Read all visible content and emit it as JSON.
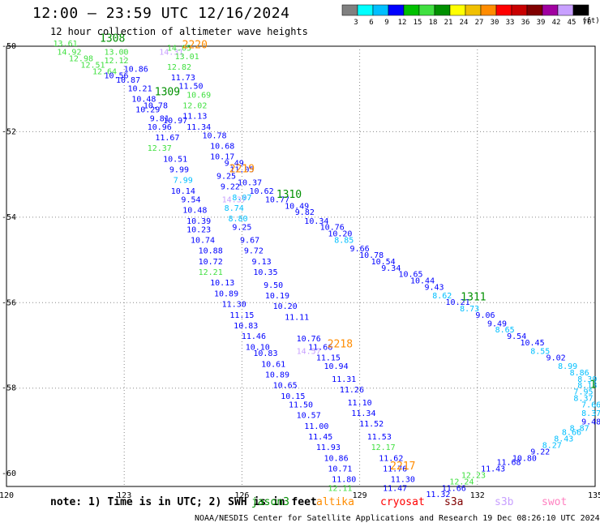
{
  "header": {
    "title": "12:00 — 23:59 UTC 12/16/2024",
    "subtitle": "12 hour collection of altimeter wave heights"
  },
  "colorbar": {
    "unit": "(ft)",
    "labels": [
      "3",
      "6",
      "9",
      "12",
      "15",
      "18",
      "21",
      "24",
      "27",
      "30",
      "33",
      "36",
      "39",
      "42",
      "45",
      "70"
    ],
    "colors": [
      "#808080",
      "#00ffff",
      "#00bfff",
      "#0000ff",
      "#00c000",
      "#40e040",
      "#009000",
      "#ffff00",
      "#f0c000",
      "#ff8c00",
      "#ff0000",
      "#c80000",
      "#800000",
      "#a000a0",
      "#c8a0ff",
      "#000000"
    ]
  },
  "axes": {
    "lon_ticks": [
      "120",
      "123",
      "126",
      "129",
      "132",
      "135"
    ],
    "lat_ticks": [
      "-50",
      "-52",
      "-54",
      "-56",
      "-58",
      "-60"
    ]
  },
  "satellites": [
    {
      "name": "jason3",
      "label": "jason3",
      "color": "#009000"
    },
    {
      "name": "altika",
      "label": "altika",
      "color": "#ff8c00"
    },
    {
      "name": "cryosat",
      "label": "cryosat",
      "color": "#ff0000"
    },
    {
      "name": "s3a",
      "label": "s3a",
      "color": "#800000"
    },
    {
      "name": "s3b",
      "label": "s3b",
      "color": "#c8a0ff"
    },
    {
      "name": "swot",
      "label": "swot",
      "color": "#ff80c0"
    }
  ],
  "time_labels": [
    {
      "text": "1308",
      "color": "#009000",
      "lon": 122.7,
      "lat": -49.9
    },
    {
      "text": "2220",
      "color": "#ff8c00",
      "lon": 124.8,
      "lat": -50.05
    },
    {
      "text": "1309",
      "color": "#009000",
      "lon": 124.1,
      "lat": -51.15
    },
    {
      "text": "2219",
      "color": "#ff8c00",
      "lon": 126.0,
      "lat": -52.95
    },
    {
      "text": "1310",
      "color": "#009000",
      "lon": 127.2,
      "lat": -53.55
    },
    {
      "text": "1311",
      "color": "#009000",
      "lon": 131.9,
      "lat": -55.95
    },
    {
      "text": "2218",
      "color": "#ff8c00",
      "lon": 128.5,
      "lat": -57.05
    },
    {
      "text": "2217",
      "color": "#ff8c00",
      "lon": 130.1,
      "lat": -59.9
    },
    {
      "text": "1",
      "color": "#009000",
      "lon": 134.95,
      "lat": -58.0
    }
  ],
  "wave_labels": [
    {
      "v": "13.61",
      "c": "#40e040",
      "lon": 121.5,
      "lat": -50.0
    },
    {
      "v": "14.92",
      "c": "#40e040",
      "lon": 121.6,
      "lat": -50.2
    },
    {
      "v": "13.00",
      "c": "#40e040",
      "lon": 122.8,
      "lat": -50.2
    },
    {
      "v": "12.98",
      "c": "#40e040",
      "lon": 121.9,
      "lat": -50.35
    },
    {
      "v": "12.12",
      "c": "#40e040",
      "lon": 122.8,
      "lat": -50.4
    },
    {
      "v": "12.51",
      "c": "#40e040",
      "lon": 122.2,
      "lat": -50.5
    },
    {
      "v": "12.64",
      "c": "#40e040",
      "lon": 122.5,
      "lat": -50.65
    },
    {
      "v": "14.31",
      "c": "#c8a0ff",
      "lon": 124.2,
      "lat": -50.2
    },
    {
      "v": "14.05",
      "c": "#40e040",
      "lon": 124.4,
      "lat": -50.1
    },
    {
      "v": "13.01",
      "c": "#40e040",
      "lon": 124.6,
      "lat": -50.3
    },
    {
      "v": "12.82",
      "c": "#40e040",
      "lon": 124.4,
      "lat": -50.55
    },
    {
      "v": "10.86",
      "c": "#0000ff",
      "lon": 123.3,
      "lat": -50.6
    },
    {
      "v": "10.56",
      "c": "#0000ff",
      "lon": 122.8,
      "lat": -50.75
    },
    {
      "v": "10.87",
      "c": "#0000ff",
      "lon": 123.1,
      "lat": -50.85
    },
    {
      "v": "11.73",
      "c": "#0000ff",
      "lon": 124.5,
      "lat": -50.8
    },
    {
      "v": "11.50",
      "c": "#0000ff",
      "lon": 124.7,
      "lat": -51.0
    },
    {
      "v": "10.21",
      "c": "#0000ff",
      "lon": 123.4,
      "lat": -51.05
    },
    {
      "v": "10.69",
      "c": "#40e040",
      "lon": 124.9,
      "lat": -51.2
    },
    {
      "v": "10.48",
      "c": "#0000ff",
      "lon": 123.5,
      "lat": -51.3
    },
    {
      "v": "10.78",
      "c": "#0000ff",
      "lon": 123.8,
      "lat": -51.45
    },
    {
      "v": "12.02",
      "c": "#40e040",
      "lon": 124.8,
      "lat": -51.45
    },
    {
      "v": "10.29",
      "c": "#0000ff",
      "lon": 123.6,
      "lat": -51.55
    },
    {
      "v": "11.13",
      "c": "#0000ff",
      "lon": 124.8,
      "lat": -51.7
    },
    {
      "v": "9.81",
      "c": "#0000ff",
      "lon": 123.9,
      "lat": -51.75
    },
    {
      "v": "10.97",
      "c": "#0000ff",
      "lon": 124.3,
      "lat": -51.8
    },
    {
      "v": "11.34",
      "c": "#0000ff",
      "lon": 124.9,
      "lat": -51.95
    },
    {
      "v": "10.96",
      "c": "#0000ff",
      "lon": 123.9,
      "lat": -51.95
    },
    {
      "v": "11.67",
      "c": "#0000ff",
      "lon": 124.1,
      "lat": -52.2
    },
    {
      "v": "10.78",
      "c": "#0000ff",
      "lon": 125.3,
      "lat": -52.15
    },
    {
      "v": "12.37",
      "c": "#40e040",
      "lon": 123.9,
      "lat": -52.45
    },
    {
      "v": "10.68",
      "c": "#0000ff",
      "lon": 125.5,
      "lat": -52.4
    },
    {
      "v": "10.51",
      "c": "#0000ff",
      "lon": 124.3,
      "lat": -52.7
    },
    {
      "v": "10.17",
      "c": "#0000ff",
      "lon": 125.5,
      "lat": -52.65
    },
    {
      "v": "9.49",
      "c": "#0000ff",
      "lon": 125.8,
      "lat": -52.8
    },
    {
      "v": "9.99",
      "c": "#0000ff",
      "lon": 124.4,
      "lat": -52.95
    },
    {
      "v": "11.05",
      "c": "#0000ff",
      "lon": 126.0,
      "lat": -52.95
    },
    {
      "v": "9.25",
      "c": "#0000ff",
      "lon": 125.6,
      "lat": -53.1
    },
    {
      "v": "10.37",
      "c": "#0000ff",
      "lon": 126.2,
      "lat": -53.25
    },
    {
      "v": "7.99",
      "c": "#00bfff",
      "lon": 124.5,
      "lat": -53.2
    },
    {
      "v": "9.22",
      "c": "#0000ff",
      "lon": 125.7,
      "lat": -53.35
    },
    {
      "v": "10.14",
      "c": "#0000ff",
      "lon": 124.5,
      "lat": -53.45
    },
    {
      "v": "10.62",
      "c": "#0000ff",
      "lon": 126.5,
      "lat": -53.45
    },
    {
      "v": "14.37",
      "c": "#c8a0ff",
      "lon": 125.8,
      "lat": -53.65
    },
    {
      "v": "8.07",
      "c": "#00bfff",
      "lon": 126.0,
      "lat": -53.6
    },
    {
      "v": "10.77",
      "c": "#0000ff",
      "lon": 126.9,
      "lat": -53.65
    },
    {
      "v": "9.54",
      "c": "#0000ff",
      "lon": 124.7,
      "lat": -53.65
    },
    {
      "v": "8.74",
      "c": "#00bfff",
      "lon": 125.8,
      "lat": -53.85
    },
    {
      "v": "10.49",
      "c": "#0000ff",
      "lon": 127.4,
      "lat": -53.8
    },
    {
      "v": "10.48",
      "c": "#0000ff",
      "lon": 124.8,
      "lat": -53.9
    },
    {
      "v": "9.82",
      "c": "#0000ff",
      "lon": 127.6,
      "lat": -53.95
    },
    {
      "v": "8.80",
      "c": "#00bfff",
      "lon": 125.9,
      "lat": -54.1
    },
    {
      "v": "10.39",
      "c": "#0000ff",
      "lon": 124.9,
      "lat": -54.15
    },
    {
      "v": "10.34",
      "c": "#0000ff",
      "lon": 127.9,
      "lat": -54.15
    },
    {
      "v": "9.25",
      "c": "#0000ff",
      "lon": 126.0,
      "lat": -54.3
    },
    {
      "v": "10.23",
      "c": "#0000ff",
      "lon": 124.9,
      "lat": -54.35
    },
    {
      "v": "10.76",
      "c": "#0000ff",
      "lon": 128.3,
      "lat": -54.3
    },
    {
      "v": "10.20",
      "c": "#0000ff",
      "lon": 128.5,
      "lat": -54.45
    },
    {
      "v": "8.85",
      "c": "#00bfff",
      "lon": 128.6,
      "lat": -54.6
    },
    {
      "v": "9.67",
      "c": "#0000ff",
      "lon": 126.2,
      "lat": -54.6
    },
    {
      "v": "10.74",
      "c": "#0000ff",
      "lon": 125.0,
      "lat": -54.6
    },
    {
      "v": "9.66",
      "c": "#0000ff",
      "lon": 129.0,
      "lat": -54.8
    },
    {
      "v": "9.72",
      "c": "#0000ff",
      "lon": 126.3,
      "lat": -54.85
    },
    {
      "v": "10.88",
      "c": "#0000ff",
      "lon": 125.2,
      "lat": -54.85
    },
    {
      "v": "10.78",
      "c": "#0000ff",
      "lon": 129.3,
      "lat": -54.95
    },
    {
      "v": "10.54",
      "c": "#0000ff",
      "lon": 129.6,
      "lat": -55.1
    },
    {
      "v": "9.13",
      "c": "#0000ff",
      "lon": 126.5,
      "lat": -55.1
    },
    {
      "v": "10.72",
      "c": "#0000ff",
      "lon": 125.2,
      "lat": -55.1
    },
    {
      "v": "9.34",
      "c": "#0000ff",
      "lon": 129.8,
      "lat": -55.25
    },
    {
      "v": "12.21",
      "c": "#40e040",
      "lon": 125.2,
      "lat": -55.35
    },
    {
      "v": "10.35",
      "c": "#0000ff",
      "lon": 126.6,
      "lat": -55.35
    },
    {
      "v": "10.65",
      "c": "#0000ff",
      "lon": 130.3,
      "lat": -55.4
    },
    {
      "v": "10.44",
      "c": "#0000ff",
      "lon": 130.6,
      "lat": -55.55
    },
    {
      "v": "10.13",
      "c": "#0000ff",
      "lon": 125.5,
      "lat": -55.6
    },
    {
      "v": "9.50",
      "c": "#0000ff",
      "lon": 126.8,
      "lat": -55.65
    },
    {
      "v": "9.43",
      "c": "#0000ff",
      "lon": 130.9,
      "lat": -55.7
    },
    {
      "v": "10.89",
      "c": "#0000ff",
      "lon": 125.6,
      "lat": -55.85
    },
    {
      "v": "8.62",
      "c": "#00bfff",
      "lon": 131.1,
      "lat": -55.9
    },
    {
      "v": "10.19",
      "c": "#0000ff",
      "lon": 126.9,
      "lat": -55.9
    },
    {
      "v": "10.21",
      "c": "#0000ff",
      "lon": 131.5,
      "lat": -56.05
    },
    {
      "v": "11.30",
      "c": "#0000ff",
      "lon": 125.8,
      "lat": -56.1
    },
    {
      "v": "10.20",
      "c": "#0000ff",
      "lon": 127.1,
      "lat": -56.15
    },
    {
      "v": "8.73",
      "c": "#00bfff",
      "lon": 131.8,
      "lat": -56.2
    },
    {
      "v": "11.15",
      "c": "#0000ff",
      "lon": 126.0,
      "lat": -56.35
    },
    {
      "v": "9.06",
      "c": "#0000ff",
      "lon": 132.2,
      "lat": -56.35
    },
    {
      "v": "11.11",
      "c": "#0000ff",
      "lon": 127.4,
      "lat": -56.4
    },
    {
      "v": "9.49",
      "c": "#0000ff",
      "lon": 132.5,
      "lat": -56.55
    },
    {
      "v": "10.83",
      "c": "#0000ff",
      "lon": 126.1,
      "lat": -56.6
    },
    {
      "v": "8.65",
      "c": "#00bfff",
      "lon": 132.7,
      "lat": -56.7
    },
    {
      "v": "10.76",
      "c": "#0000ff",
      "lon": 127.7,
      "lat": -56.9
    },
    {
      "v": "9.54",
      "c": "#0000ff",
      "lon": 133.0,
      "lat": -56.85
    },
    {
      "v": "11.46",
      "c": "#0000ff",
      "lon": 126.3,
      "lat": -56.85
    },
    {
      "v": "10.45",
      "c": "#0000ff",
      "lon": 133.4,
      "lat": -57.0
    },
    {
      "v": "11.66",
      "c": "#0000ff",
      "lon": 128.0,
      "lat": -57.1
    },
    {
      "v": "10.10",
      "c": "#0000ff",
      "lon": 126.4,
      "lat": -57.1
    },
    {
      "v": "14.57",
      "c": "#c8a0ff",
      "lon": 127.7,
      "lat": -57.2
    },
    {
      "v": "8.55",
      "c": "#00bfff",
      "lon": 133.6,
      "lat": -57.2
    },
    {
      "v": "10.83",
      "c": "#0000ff",
      "lon": 126.6,
      "lat": -57.25
    },
    {
      "v": "11.15",
      "c": "#0000ff",
      "lon": 128.2,
      "lat": -57.35
    },
    {
      "v": "9.02",
      "c": "#0000ff",
      "lon": 134.0,
      "lat": -57.35
    },
    {
      "v": "10.61",
      "c": "#0000ff",
      "lon": 126.8,
      "lat": -57.5
    },
    {
      "v": "8.99",
      "c": "#00bfff",
      "lon": 134.3,
      "lat": -57.55
    },
    {
      "v": "10.94",
      "c": "#0000ff",
      "lon": 128.4,
      "lat": -57.55
    },
    {
      "v": "8.86",
      "c": "#00bfff",
      "lon": 134.6,
      "lat": -57.7
    },
    {
      "v": "10.89",
      "c": "#0000ff",
      "lon": 126.9,
      "lat": -57.75
    },
    {
      "v": "8.39",
      "c": "#00bfff",
      "lon": 134.8,
      "lat": -57.85
    },
    {
      "v": "11.31",
      "c": "#0000ff",
      "lon": 128.6,
      "lat": -57.85
    },
    {
      "v": "10.65",
      "c": "#0000ff",
      "lon": 127.1,
      "lat": -58.0
    },
    {
      "v": "8.18",
      "c": "#00bfff",
      "lon": 134.8,
      "lat": -58.0
    },
    {
      "v": "11.26",
      "c": "#0000ff",
      "lon": 128.8,
      "lat": -58.1
    },
    {
      "v": "10.15",
      "c": "#0000ff",
      "lon": 127.3,
      "lat": -58.25
    },
    {
      "v": "7.95",
      "c": "#00bfff",
      "lon": 134.7,
      "lat": -58.15
    },
    {
      "v": "8.37",
      "c": "#00bfff",
      "lon": 134.7,
      "lat": -58.3
    },
    {
      "v": "11.10",
      "c": "#0000ff",
      "lon": 129.0,
      "lat": -58.4
    },
    {
      "v": "11.50",
      "c": "#0000ff",
      "lon": 127.5,
      "lat": -58.45
    },
    {
      "v": "7.66",
      "c": "#00bfff",
      "lon": 134.9,
      "lat": -58.45
    },
    {
      "v": "11.34",
      "c": "#0000ff",
      "lon": 129.1,
      "lat": -58.65
    },
    {
      "v": "10.57",
      "c": "#0000ff",
      "lon": 127.7,
      "lat": -58.7
    },
    {
      "v": "8.37",
      "c": "#00bfff",
      "lon": 134.9,
      "lat": -58.65
    },
    {
      "v": "9.48",
      "c": "#0000ff",
      "lon": 134.9,
      "lat": -58.85
    },
    {
      "v": "11.52",
      "c": "#0000ff",
      "lon": 129.3,
      "lat": -58.9
    },
    {
      "v": "11.00",
      "c": "#0000ff",
      "lon": 127.9,
      "lat": -58.95
    },
    {
      "v": "8.87",
      "c": "#00bfff",
      "lon": 134.6,
      "lat": -59.0
    },
    {
      "v": "8.66",
      "c": "#00bfff",
      "lon": 134.4,
      "lat": -59.1
    },
    {
      "v": "11.53",
      "c": "#0000ff",
      "lon": 129.5,
      "lat": -59.2
    },
    {
      "v": "11.45",
      "c": "#0000ff",
      "lon": 128.0,
      "lat": -59.2
    },
    {
      "v": "8.43",
      "c": "#00bfff",
      "lon": 134.2,
      "lat": -59.25
    },
    {
      "v": "8.27",
      "c": "#00bfff",
      "lon": 133.9,
      "lat": -59.4
    },
    {
      "v": "11.93",
      "c": "#0000ff",
      "lon": 128.2,
      "lat": -59.45
    },
    {
      "v": "12.17",
      "c": "#40e040",
      "lon": 129.6,
      "lat": -59.45
    },
    {
      "v": "9.22",
      "c": "#0000ff",
      "lon": 133.6,
      "lat": -59.55
    },
    {
      "v": "10.86",
      "c": "#0000ff",
      "lon": 128.4,
      "lat": -59.7
    },
    {
      "v": "11.62",
      "c": "#0000ff",
      "lon": 129.8,
      "lat": -59.7
    },
    {
      "v": "10.80",
      "c": "#0000ff",
      "lon": 133.2,
      "lat": -59.7
    },
    {
      "v": "11.68",
      "c": "#0000ff",
      "lon": 132.8,
      "lat": -59.8
    },
    {
      "v": "10.71",
      "c": "#0000ff",
      "lon": 128.5,
      "lat": -59.95
    },
    {
      "v": "11.76",
      "c": "#0000ff",
      "lon": 129.9,
      "lat": -59.95
    },
    {
      "v": "11.43",
      "c": "#0000ff",
      "lon": 132.4,
      "lat": -59.95
    },
    {
      "v": "12.23",
      "c": "#40e040",
      "lon": 131.9,
      "lat": -60.1
    },
    {
      "v": "11.80",
      "c": "#0000ff",
      "lon": 128.6,
      "lat": -60.2
    },
    {
      "v": "11.30",
      "c": "#0000ff",
      "lon": 130.1,
      "lat": -60.2
    },
    {
      "v": "12.24",
      "c": "#40e040",
      "lon": 131.6,
      "lat": -60.25
    },
    {
      "v": "12.11",
      "c": "#40e040",
      "lon": 128.5,
      "lat": -60.4
    },
    {
      "v": "11.47",
      "c": "#0000ff",
      "lon": 129.9,
      "lat": -60.4
    },
    {
      "v": "11.66",
      "c": "#0000ff",
      "lon": 131.4,
      "lat": -60.4
    },
    {
      "v": "11.32",
      "c": "#0000ff",
      "lon": 131.0,
      "lat": -60.55
    }
  ],
  "notes": {
    "note_text": "note: 1) Time is in UTC; 2) SWH is in feet",
    "footer": "NOAA/NESDIS Center for Satellite Applications and Research   19 Dec 08:26:10 UTC 2024"
  }
}
